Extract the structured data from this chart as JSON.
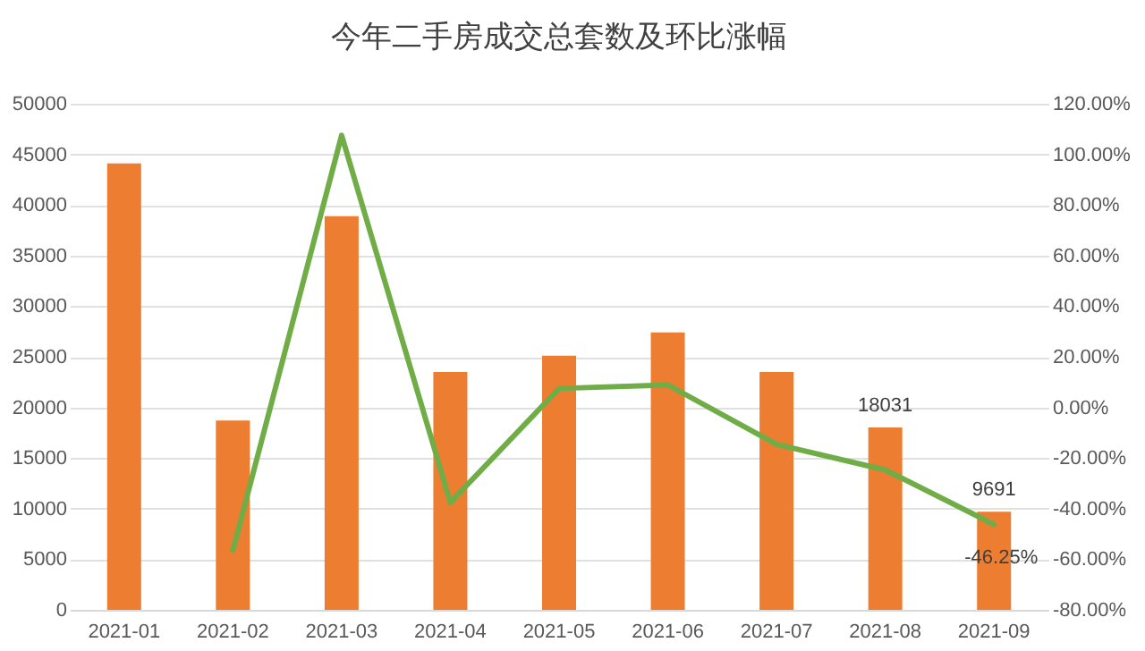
{
  "chart_data": {
    "type": "bar",
    "title": "今年二手房成交总套数及环比涨幅",
    "categories": [
      "2021-01",
      "2021-02",
      "2021-03",
      "2021-04",
      "2021-05",
      "2021-06",
      "2021-07",
      "2021-08",
      "2021-09"
    ],
    "series": [
      {
        "color": "#ed7d31",
        "values": [
          44100,
          18700,
          38900,
          23500,
          25100,
          27400,
          23500,
          18031,
          9691
        ],
        "value_labels": [
          null,
          null,
          null,
          null,
          null,
          null,
          null,
          "18031",
          "9691"
        ]
      },
      {
        "type": "line",
        "axis": "y2",
        "color": "#70ad47",
        "values": [
          null,
          -56.5,
          107.5,
          -37.6,
          7.5,
          8.9,
          -14.6,
          -24.7,
          -46.25
        ],
        "value_labels": [
          null,
          null,
          null,
          null,
          null,
          null,
          null,
          null,
          "-46.25%"
        ]
      }
    ],
    "ylim": [
      0,
      50000
    ],
    "yticks": [
      0,
      5000,
      10000,
      15000,
      20000,
      25000,
      30000,
      35000,
      40000,
      45000,
      50000
    ],
    "y2lim": [
      -80,
      120
    ],
    "y2ticks": [
      {
        "value": -80,
        "label": "-80.00%"
      },
      {
        "value": -60,
        "label": "-60.00%"
      },
      {
        "value": -40,
        "label": "-40.00%"
      },
      {
        "value": -20,
        "label": "-20.00%"
      },
      {
        "value": 0,
        "label": "0.00%"
      },
      {
        "value": 20,
        "label": "20.00%"
      },
      {
        "value": 40,
        "label": "40.00%"
      },
      {
        "value": 60,
        "label": "60.00%"
      },
      {
        "value": 80,
        "label": "80.00%"
      },
      {
        "value": 100,
        "label": "100.00%"
      },
      {
        "value": 120,
        "label": "120.00%"
      }
    ],
    "grid": "y"
  }
}
